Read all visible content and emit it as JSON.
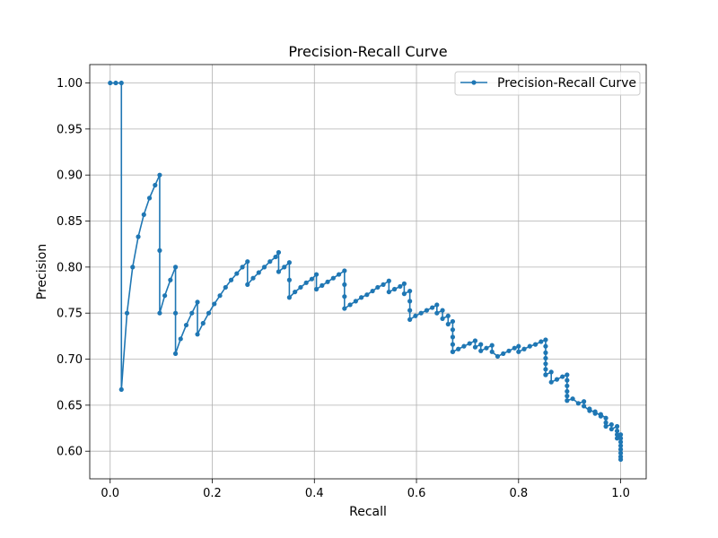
{
  "chart_data": {
    "type": "line",
    "title": "Precision-Recall Curve",
    "xlabel": "Recall",
    "ylabel": "Precision",
    "xlim": [
      -0.04,
      1.05
    ],
    "ylim": [
      0.57,
      1.02
    ],
    "xticks": [
      0.0,
      0.2,
      0.4,
      0.6,
      0.8,
      1.0
    ],
    "yticks": [
      0.6,
      0.65,
      0.7,
      0.75,
      0.8,
      0.85,
      0.9,
      0.95,
      1.0
    ],
    "xtick_labels": [
      "0.0",
      "0.2",
      "0.4",
      "0.6",
      "0.8",
      "1.0"
    ],
    "ytick_labels": [
      "0.60",
      "0.65",
      "0.70",
      "0.75",
      "0.80",
      "0.85",
      "0.90",
      "0.95",
      "1.00"
    ],
    "grid": true,
    "legend_position": "top-right",
    "series": [
      {
        "name": "Precision-Recall Curve",
        "color": "#1f77b4",
        "marker": "circle",
        "x": [
          0.0,
          0.011,
          0.022,
          0.022,
          0.033,
          0.044,
          0.055,
          0.066,
          0.077,
          0.088,
          0.097,
          0.097,
          0.097,
          0.107,
          0.118,
          0.128,
          0.128,
          0.128,
          0.138,
          0.149,
          0.16,
          0.171,
          0.171,
          0.182,
          0.193,
          0.204,
          0.215,
          0.226,
          0.237,
          0.248,
          0.259,
          0.269,
          0.269,
          0.28,
          0.291,
          0.302,
          0.313,
          0.324,
          0.33,
          0.33,
          0.341,
          0.351,
          0.351,
          0.351,
          0.362,
          0.373,
          0.384,
          0.395,
          0.404,
          0.404,
          0.415,
          0.426,
          0.437,
          0.448,
          0.459,
          0.459,
          0.459,
          0.459,
          0.47,
          0.481,
          0.492,
          0.503,
          0.514,
          0.524,
          0.535,
          0.546,
          0.546,
          0.557,
          0.568,
          0.576,
          0.576,
          0.587,
          0.587,
          0.587,
          0.587,
          0.598,
          0.609,
          0.62,
          0.631,
          0.64,
          0.64,
          0.651,
          0.651,
          0.662,
          0.662,
          0.671,
          0.671,
          0.671,
          0.671,
          0.671,
          0.671,
          0.682,
          0.693,
          0.704,
          0.715,
          0.715,
          0.726,
          0.726,
          0.737,
          0.748,
          0.748,
          0.759,
          0.77,
          0.781,
          0.792,
          0.8,
          0.8,
          0.811,
          0.822,
          0.833,
          0.844,
          0.853,
          0.853,
          0.853,
          0.853,
          0.853,
          0.853,
          0.853,
          0.853,
          0.864,
          0.864,
          0.875,
          0.886,
          0.895,
          0.895,
          0.895,
          0.895,
          0.895,
          0.895,
          0.906,
          0.917,
          0.928,
          0.928,
          0.939,
          0.939,
          0.95,
          0.95,
          0.961,
          0.961,
          0.971,
          0.971,
          0.971,
          0.982,
          0.982,
          0.993,
          0.993,
          0.993,
          0.993,
          1.0,
          1.0,
          1.0,
          1.0,
          1.0,
          1.0,
          1.0,
          1.0
        ],
        "y": [
          1.0,
          1.0,
          1.0,
          0.667,
          0.75,
          0.8,
          0.833,
          0.857,
          0.875,
          0.889,
          0.9,
          0.818,
          0.75,
          0.769,
          0.786,
          0.8,
          0.75,
          0.706,
          0.722,
          0.737,
          0.75,
          0.762,
          0.727,
          0.739,
          0.75,
          0.76,
          0.769,
          0.778,
          0.786,
          0.793,
          0.8,
          0.806,
          0.781,
          0.788,
          0.794,
          0.8,
          0.806,
          0.811,
          0.816,
          0.795,
          0.8,
          0.805,
          0.786,
          0.767,
          0.773,
          0.778,
          0.783,
          0.787,
          0.792,
          0.776,
          0.78,
          0.784,
          0.788,
          0.792,
          0.796,
          0.781,
          0.768,
          0.755,
          0.759,
          0.763,
          0.767,
          0.77,
          0.774,
          0.778,
          0.781,
          0.785,
          0.773,
          0.776,
          0.779,
          0.782,
          0.771,
          0.774,
          0.763,
          0.753,
          0.743,
          0.747,
          0.75,
          0.753,
          0.756,
          0.759,
          0.75,
          0.753,
          0.744,
          0.747,
          0.738,
          0.741,
          0.732,
          0.724,
          0.716,
          0.708,
          0.708,
          0.711,
          0.714,
          0.717,
          0.72,
          0.713,
          0.716,
          0.709,
          0.712,
          0.715,
          0.708,
          0.703,
          0.706,
          0.709,
          0.712,
          0.714,
          0.708,
          0.711,
          0.714,
          0.716,
          0.719,
          0.721,
          0.714,
          0.707,
          0.701,
          0.695,
          0.689,
          0.683,
          0.683,
          0.686,
          0.675,
          0.678,
          0.681,
          0.683,
          0.677,
          0.671,
          0.665,
          0.66,
          0.655,
          0.657,
          0.652,
          0.654,
          0.649,
          0.644,
          0.646,
          0.641,
          0.643,
          0.638,
          0.64,
          0.636,
          0.631,
          0.627,
          0.629,
          0.624,
          0.627,
          0.622,
          0.618,
          0.614,
          0.618,
          0.614,
          0.61,
          0.606,
          0.602,
          0.598,
          0.594,
          0.591
        ]
      }
    ]
  }
}
